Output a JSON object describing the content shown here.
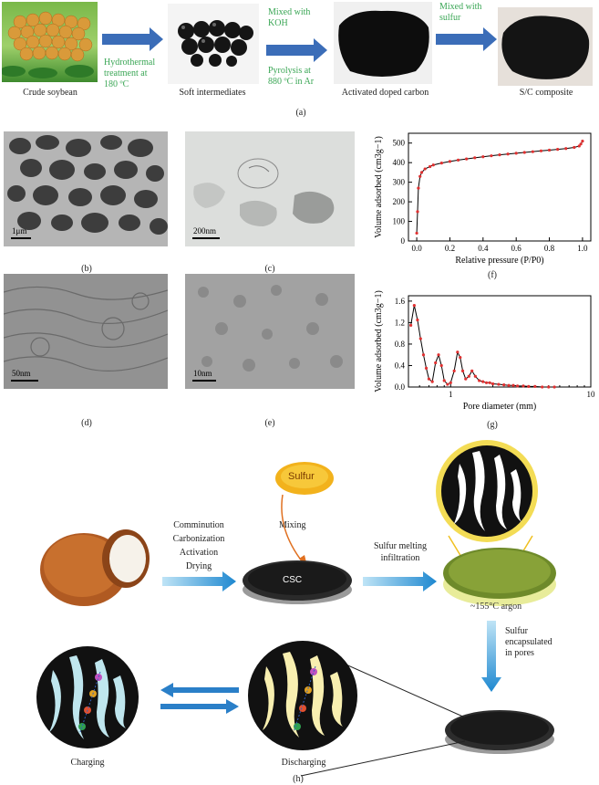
{
  "panel_a": {
    "caption": "(a)",
    "items": [
      {
        "label": "Crude soybean"
      },
      {
        "label": "Soft intermediates"
      },
      {
        "label": "Activated doped carbon"
      },
      {
        "label": "S/C composite"
      }
    ],
    "arrows": [
      {
        "lines": [
          "Hydrothermal",
          "treatment at",
          "180 ºC"
        ]
      },
      {
        "lines": [
          "Mixed with",
          "KOH",
          "",
          "Pyrolysis at",
          "880 ºC in Ar"
        ]
      },
      {
        "lines": [
          "Mixed with",
          "sulfur"
        ]
      }
    ]
  },
  "panel_b": {
    "caption": "(b)",
    "scale": "1μm"
  },
  "panel_c": {
    "caption": "(c)",
    "scale": "200nm"
  },
  "panel_d": {
    "caption": "(d)",
    "scale": "50nm"
  },
  "panel_e": {
    "caption": "(e)",
    "scale": "10nm"
  },
  "panel_h": {
    "caption": "(h)",
    "steps": [
      "Comminution",
      "Carbonization",
      "Activation",
      "Drying"
    ],
    "mixing": "Mixing",
    "sulfur": "Sulfur",
    "csc": "CSC",
    "melting": [
      "Sulfur melting",
      "infiltration"
    ],
    "argon": "~155°C argon",
    "encapsulated": [
      "Sulfur",
      "encapsulated",
      "in pores"
    ],
    "charging": "Charging",
    "discharging": "Discharging"
  },
  "chart_data": [
    {
      "type": "line",
      "caption": "(f)",
      "xlabel": "Relative pressure (P/P0)",
      "ylabel": "Volume adsorbed (cm3g−1)",
      "xlim": [
        -0.05,
        1.05
      ],
      "ylim": [
        0,
        550
      ],
      "xticks": [
        "0.0",
        "0.2",
        "0.4",
        "0.6",
        "0.8",
        "1.0"
      ],
      "yticks": [
        "0",
        "100",
        "200",
        "300",
        "400",
        "500"
      ],
      "series": [
        {
          "color": "#e03030",
          "x": [
            0.0,
            0.005,
            0.01,
            0.02,
            0.03,
            0.05,
            0.08,
            0.1,
            0.15,
            0.2,
            0.25,
            0.3,
            0.35,
            0.4,
            0.45,
            0.5,
            0.55,
            0.6,
            0.65,
            0.7,
            0.75,
            0.8,
            0.85,
            0.9,
            0.95,
            0.98,
            0.99,
            1.0
          ],
          "y": [
            40,
            150,
            270,
            330,
            350,
            368,
            380,
            388,
            398,
            406,
            413,
            419,
            425,
            430,
            435,
            440,
            444,
            448,
            452,
            456,
            460,
            464,
            468,
            472,
            478,
            485,
            495,
            510
          ]
        }
      ]
    },
    {
      "type": "line",
      "caption": "(g)",
      "xlabel": "Pore diameter (mm)",
      "ylabel": "Volume adsorbed (cm3g−1)",
      "xscale": "log",
      "xlim": [
        0.5,
        10
      ],
      "ylim": [
        0,
        1.7
      ],
      "xticks": [
        "1",
        "10"
      ],
      "yticks": [
        "0.0",
        "0.4",
        "0.8",
        "1.2",
        "1.6"
      ],
      "series": [
        {
          "color": "#e03030",
          "x": [
            0.52,
            0.55,
            0.58,
            0.61,
            0.64,
            0.67,
            0.7,
            0.74,
            0.78,
            0.82,
            0.86,
            0.9,
            0.95,
            1.0,
            1.06,
            1.12,
            1.17,
            1.22,
            1.28,
            1.35,
            1.42,
            1.5,
            1.6,
            1.7,
            1.8,
            1.9,
            2.0,
            2.2,
            2.4,
            2.6,
            2.8,
            3.0,
            3.3,
            3.6,
            4.0,
            4.5,
            5.0,
            5.5
          ],
          "y": [
            1.15,
            1.52,
            1.25,
            0.9,
            0.6,
            0.35,
            0.15,
            0.1,
            0.45,
            0.6,
            0.4,
            0.12,
            0.05,
            0.08,
            0.3,
            0.65,
            0.55,
            0.3,
            0.15,
            0.2,
            0.3,
            0.2,
            0.12,
            0.1,
            0.08,
            0.08,
            0.06,
            0.05,
            0.04,
            0.03,
            0.03,
            0.02,
            0.02,
            0.01,
            0.01,
            0.0,
            0.0,
            0.0
          ]
        }
      ]
    }
  ]
}
